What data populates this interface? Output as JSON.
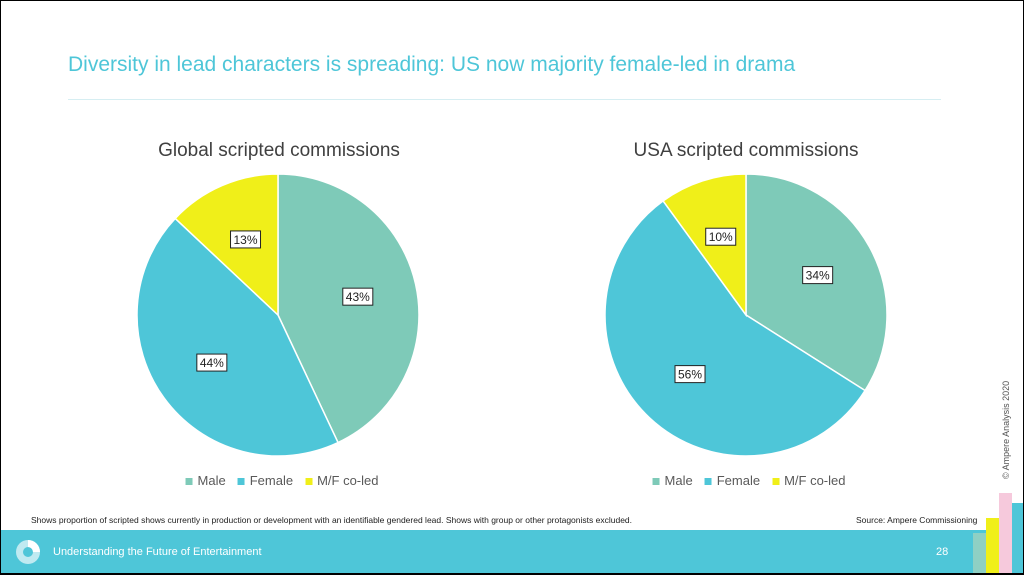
{
  "title": "Diversity in lead characters is spreading: US now majority female-led in drama",
  "colors": {
    "male": "#7ecab8",
    "female": "#4ec6d8",
    "coled": "#f0ef19",
    "accent": "#4ec6d8"
  },
  "chart_data": [
    {
      "type": "pie",
      "title": "Global scripted commissions",
      "categories": [
        "Male",
        "Female",
        "M/F co-led"
      ],
      "values": [
        43,
        44,
        13
      ],
      "labels": [
        "43%",
        "44%",
        "13%"
      ],
      "legend": "bottom"
    },
    {
      "type": "pie",
      "title": "USA scripted commissions",
      "categories": [
        "Male",
        "Female",
        "M/F co-led"
      ],
      "values": [
        34,
        56,
        10
      ],
      "labels": [
        "34%",
        "56%",
        "10%"
      ],
      "legend": "bottom"
    }
  ],
  "note": "Shows proportion of scripted shows currently in production or development with an identifiable gendered lead. Shows with group or other protagonists excluded.",
  "source": "Source: Ampere Commissioning",
  "footer": {
    "text": "Understanding the Future of Entertainment",
    "page": "28"
  },
  "copyright": "© Ampere Analysis 2020"
}
